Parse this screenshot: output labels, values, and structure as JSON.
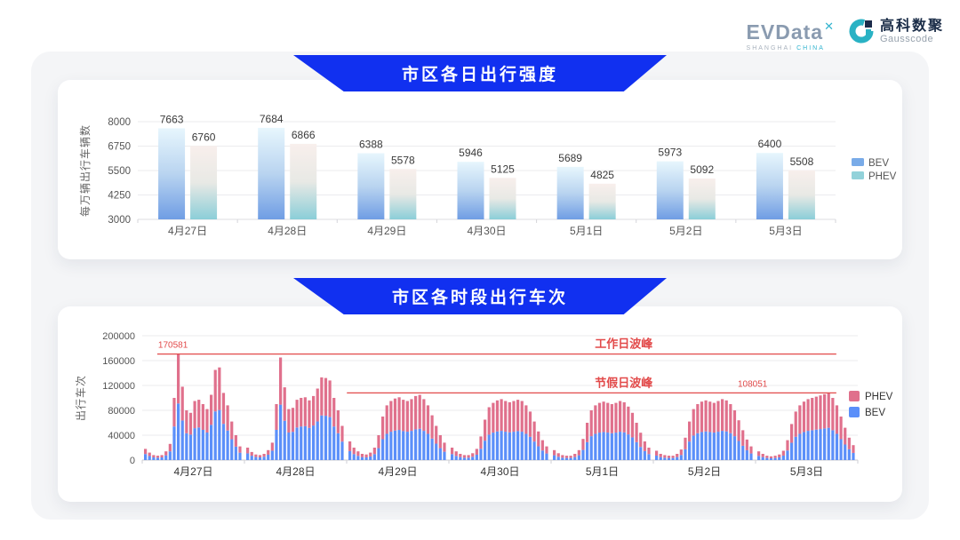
{
  "header": {
    "evdata": {
      "wordmark": "EVData",
      "sup_mark": "✕",
      "tagline_left": "SHANGHAI",
      "tagline_right": "CHINA"
    },
    "gausscode": {
      "cn_name": "高科数聚",
      "en_name": "Gausscode"
    }
  },
  "sections": [
    {
      "title": "市区各日出行强度"
    },
    {
      "title": "市区各时段出行车次"
    }
  ],
  "colors": {
    "banner_blue": "#1130f0",
    "annotation_red": "#e24a4a",
    "bev_gradient": [
      "#e7f6fd",
      "#b9d4f0",
      "#6f9de4"
    ],
    "phev_gradient": [
      "#f8efec",
      "#e8e9e5",
      "#8bced8"
    ],
    "legend_bev_top": "#79abe8",
    "legend_phev_top": "#92d2da",
    "bev_blue": "#5b8ff9",
    "phev_pink": "#e0708c",
    "grid_line": "#ebebee",
    "axis_line": "#c9c9ce",
    "tick_text": "#555555",
    "value_text": "#3a3a3a"
  },
  "chart_data": [
    {
      "type": "bar",
      "title": "市区各日出行强度",
      "ylabel": "每万辆出行车辆数",
      "xlabel": "",
      "ylim": [
        3000,
        8000
      ],
      "yticks": [
        3000,
        4250,
        5500,
        6750,
        8000
      ],
      "grid": true,
      "legend_position": "right",
      "legend": [
        {
          "name": "BEV",
          "color": "#79abe8"
        },
        {
          "name": "PHEV",
          "color": "#92d2da"
        }
      ],
      "categories": [
        "4月27日",
        "4月28日",
        "4月29日",
        "4月30日",
        "5月1日",
        "5月2日",
        "5月3日"
      ],
      "series": [
        {
          "name": "BEV",
          "values": [
            7663,
            7684,
            6388,
            5946,
            5689,
            5973,
            6400
          ]
        },
        {
          "name": "PHEV",
          "values": [
            6760,
            6866,
            5578,
            5125,
            4825,
            5092,
            5508
          ]
        }
      ]
    },
    {
      "type": "stacked-bar",
      "title": "市区各时段出行车次",
      "ylabel": "出行车次",
      "xlabel": "",
      "ylim": [
        0,
        200000
      ],
      "yticks": [
        0,
        40000,
        80000,
        120000,
        160000,
        200000
      ],
      "grid": true,
      "legend_position": "right",
      "legend": [
        {
          "name": "PHEV",
          "color": "#e0708c"
        },
        {
          "name": "BEV",
          "color": "#5b8ff9"
        }
      ],
      "categories": [
        "4月27日",
        "4月28日",
        "4月29日",
        "4月30日",
        "5月1日",
        "5月2日",
        "5月3日"
      ],
      "annotations": [
        {
          "title": "工作日波峰",
          "value": 170581,
          "value_label": "170581",
          "value_label_frac": 0.043,
          "line_start_frac": 0.021,
          "line_end_frac": 0.97,
          "title_frac": 0.673
        },
        {
          "title": "节假日波峰",
          "value": 108051,
          "value_label": "108051",
          "value_label_frac": 0.853,
          "line_start_frac": 0.286,
          "line_end_frac": 0.97,
          "title_frac": 0.673
        }
      ],
      "days": [
        {
          "label": "4月27日",
          "bev": [
            9700,
            6500,
            4300,
            3800,
            4300,
            7600,
            14000,
            54000,
            91000,
            63700,
            43200,
            41000,
            51300,
            52400,
            48600,
            44300,
            56700,
            78300,
            80500,
            58300,
            47500,
            33500,
            21600,
            11900
          ],
          "phev": [
            8300,
            5500,
            3700,
            3200,
            3700,
            6400,
            12000,
            46000,
            79581,
            54300,
            36800,
            35000,
            43700,
            44600,
            41400,
            37700,
            48300,
            66700,
            68500,
            49700,
            40500,
            28500,
            18400,
            10100
          ]
        },
        {
          "label": "4月28日",
          "bev": [
            10800,
            7000,
            4900,
            4300,
            5400,
            8600,
            15100,
            48600,
            89100,
            63200,
            44300,
            45400,
            52400,
            54000,
            54500,
            51800,
            55600,
            62100,
            71800,
            71300,
            69100,
            54000,
            43200,
            29700
          ],
          "phev": [
            9200,
            6000,
            4100,
            3700,
            4600,
            7400,
            12900,
            41400,
            75900,
            53800,
            37700,
            38600,
            44600,
            46000,
            46500,
            44200,
            47400,
            52900,
            61200,
            60700,
            58900,
            46000,
            36800,
            25300
          ]
        },
        {
          "label": "4月29日",
          "bev": [
            14400,
            9600,
            6700,
            4800,
            4300,
            5800,
            9600,
            19200,
            33600,
            42200,
            45600,
            47500,
            48500,
            46600,
            45600,
            47000,
            49400,
            50400,
            47000,
            42200,
            34600,
            26400,
            19200,
            13400
          ],
          "phev": [
            15600,
            10400,
            7300,
            5200,
            4700,
            6200,
            10400,
            20800,
            36400,
            45800,
            49400,
            51500,
            52500,
            50400,
            49400,
            51000,
            53600,
            54600,
            51000,
            45800,
            37400,
            28600,
            20800,
            14600
          ]
        },
        {
          "label": "4月30日",
          "bev": [
            9600,
            6700,
            4800,
            3800,
            3800,
            5300,
            8600,
            18200,
            31200,
            40800,
            44200,
            46100,
            47000,
            45600,
            44600,
            45600,
            46600,
            45600,
            42200,
            37400,
            29800,
            22100,
            15400,
            10600
          ],
          "phev": [
            10400,
            7300,
            5200,
            4200,
            4200,
            5700,
            9400,
            19800,
            33800,
            44200,
            47800,
            49900,
            51000,
            49400,
            48400,
            49400,
            50400,
            49400,
            45800,
            40600,
            32200,
            23900,
            16600,
            11400
          ]
        },
        {
          "label": "5月1日",
          "bev": [
            7700,
            5300,
            3800,
            3400,
            3400,
            4800,
            7700,
            16300,
            28800,
            38400,
            42200,
            44200,
            45100,
            44200,
            43200,
            44200,
            45600,
            44600,
            41300,
            36500,
            28800,
            21100,
            14400,
            9600
          ],
          "phev": [
            8300,
            5700,
            4200,
            3600,
            3600,
            5200,
            8300,
            17700,
            31200,
            41600,
            45800,
            47800,
            48900,
            47800,
            46800,
            47800,
            49400,
            48400,
            44700,
            39500,
            31200,
            22900,
            15600,
            10400
          ]
        },
        {
          "label": "5月2日",
          "bev": [
            7200,
            4800,
            3800,
            3400,
            3400,
            4800,
            8200,
            17300,
            29800,
            39400,
            43200,
            45100,
            46100,
            45100,
            44200,
            45600,
            47000,
            46100,
            43200,
            38400,
            30700,
            23000,
            15800,
            10600
          ],
          "phev": [
            7800,
            5200,
            4200,
            3600,
            3600,
            5200,
            8800,
            18700,
            32200,
            42600,
            46800,
            48900,
            49900,
            48900,
            47800,
            49400,
            51000,
            49900,
            46800,
            41600,
            33300,
            25000,
            17200,
            11400
          ]
        },
        {
          "label": "5月3日",
          "bev": [
            6700,
            4800,
            3400,
            2900,
            3400,
            4300,
            7200,
            15400,
            27800,
            37400,
            42200,
            45100,
            47000,
            48000,
            49000,
            49900,
            50900,
            51900,
            48000,
            42200,
            33600,
            25000,
            17300,
            11500
          ],
          "phev": [
            7300,
            5200,
            3600,
            3100,
            3600,
            4700,
            7800,
            16600,
            30200,
            40600,
            45800,
            48900,
            51000,
            52000,
            53000,
            54100,
            55100,
            56151,
            52000,
            45800,
            36400,
            27000,
            18700,
            12500
          ]
        }
      ]
    }
  ]
}
